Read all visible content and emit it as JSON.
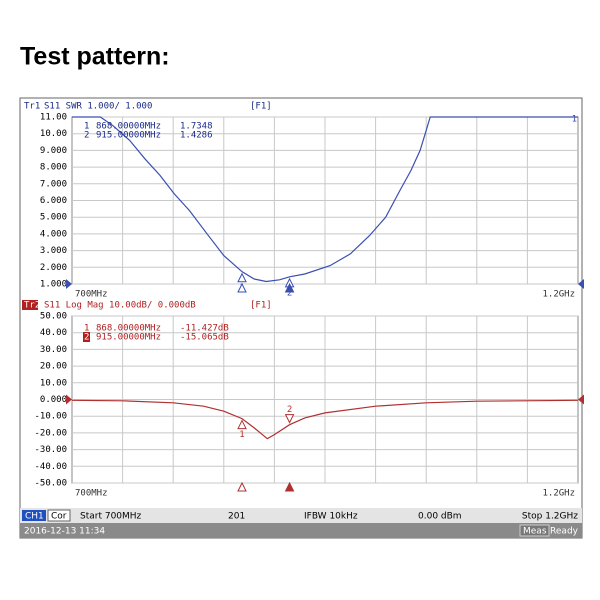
{
  "title": "Test pattern:",
  "chart_data": [
    {
      "type": "line",
      "trace": "Tr1",
      "header": "S11 SWR 1.000/ 1.000",
      "function": "[F1]",
      "color": "#3a4fb0",
      "header_color": "#1a2a8a",
      "x": [
        700,
        728,
        740,
        757,
        772,
        787,
        801,
        816,
        836,
        850,
        868,
        880,
        892,
        905,
        915,
        930,
        955,
        975,
        994,
        1010,
        1024,
        1035,
        1044,
        1050,
        1054,
        1200
      ],
      "values": [
        11,
        11,
        10.5,
        9.6,
        8.5,
        7.5,
        6.4,
        5.4,
        3.8,
        2.7,
        1.7348,
        1.3,
        1.15,
        1.25,
        1.4286,
        1.6,
        2.1,
        2.8,
        3.9,
        5.0,
        6.6,
        7.8,
        9.0,
        10.2,
        11,
        11
      ],
      "xlim": [
        700,
        1200
      ],
      "ylim": [
        1,
        11
      ],
      "xticks": [
        {
          "value": 700,
          "label": "700MHz"
        },
        {
          "value": 1200,
          "label": "1.2GHz"
        }
      ],
      "yticks": [
        {
          "value": 11,
          "label": "11.00"
        },
        {
          "value": 10,
          "label": "10.00"
        },
        {
          "value": 9,
          "label": "9.000"
        },
        {
          "value": 8,
          "label": "8.000"
        },
        {
          "value": 7,
          "label": "7.000"
        },
        {
          "value": 6,
          "label": "6.000"
        },
        {
          "value": 5,
          "label": "5.000"
        },
        {
          "value": 4,
          "label": "4.000"
        },
        {
          "value": 3,
          "label": "3.000"
        },
        {
          "value": 2,
          "label": "2.000"
        },
        {
          "value": 1,
          "label": "1.000"
        }
      ],
      "reference": 1,
      "overflow_label": "1",
      "markers": [
        {
          "label": "1",
          "x": 868,
          "y": 1.7348,
          "x_label": "868.00000MHz",
          "y_label": "1.7348"
        },
        {
          "label": "2",
          "x": 915,
          "y": 1.4286,
          "x_label": "915.00000MHz",
          "y_label": "1.4286"
        }
      ]
    },
    {
      "type": "line",
      "trace": "Tr2",
      "header": "S11 Log Mag 10.00dB/ 0.000dB",
      "function": "[F1]",
      "color": "#b03030",
      "header_color": "#b02020",
      "x": [
        700,
        750,
        800,
        830,
        850,
        868,
        880,
        893,
        900,
        915,
        930,
        950,
        1000,
        1050,
        1100,
        1200
      ],
      "values": [
        -0.5,
        -0.8,
        -2,
        -4,
        -7,
        -11.427,
        -17,
        -23.5,
        -21,
        -15.065,
        -11,
        -8,
        -4,
        -2,
        -1,
        -0.5
      ],
      "xlim": [
        700,
        1200
      ],
      "ylim": [
        -50,
        50
      ],
      "xticks": [
        {
          "value": 700,
          "label": "700MHz"
        },
        {
          "value": 1200,
          "label": "1.2GHz"
        }
      ],
      "yticks": [
        {
          "value": 50,
          "label": "50.00"
        },
        {
          "value": 40,
          "label": "40.00"
        },
        {
          "value": 30,
          "label": "30.00"
        },
        {
          "value": 20,
          "label": "20.00"
        },
        {
          "value": 10,
          "label": "10.00"
        },
        {
          "value": 0,
          "label": "0.000"
        },
        {
          "value": -10,
          "label": "-10.00"
        },
        {
          "value": -20,
          "label": "-20.00"
        },
        {
          "value": -30,
          "label": "-30.00"
        },
        {
          "value": -40,
          "label": "-40.00"
        },
        {
          "value": -50,
          "label": "-50.00"
        }
      ],
      "reference": 0,
      "markers": [
        {
          "label": "1",
          "x": 868,
          "y": -11.427,
          "x_label": "868.00000MHz",
          "y_label": "-11.427dB"
        },
        {
          "label": "2",
          "x": 915,
          "y": -15.065,
          "x_label": "915.00000MHz",
          "y_label": "-15.065dB"
        }
      ]
    }
  ],
  "status_bar": {
    "channel": "CH1",
    "correction": "Cor",
    "start": "Start 700MHz",
    "points": "201",
    "ifbw": "IFBW 10kHz",
    "power": "0.00 dBm",
    "stop": "Stop 1.2GHz",
    "datetime": "2016-12-13 11:34",
    "meas": "Meas",
    "state": "Ready"
  }
}
